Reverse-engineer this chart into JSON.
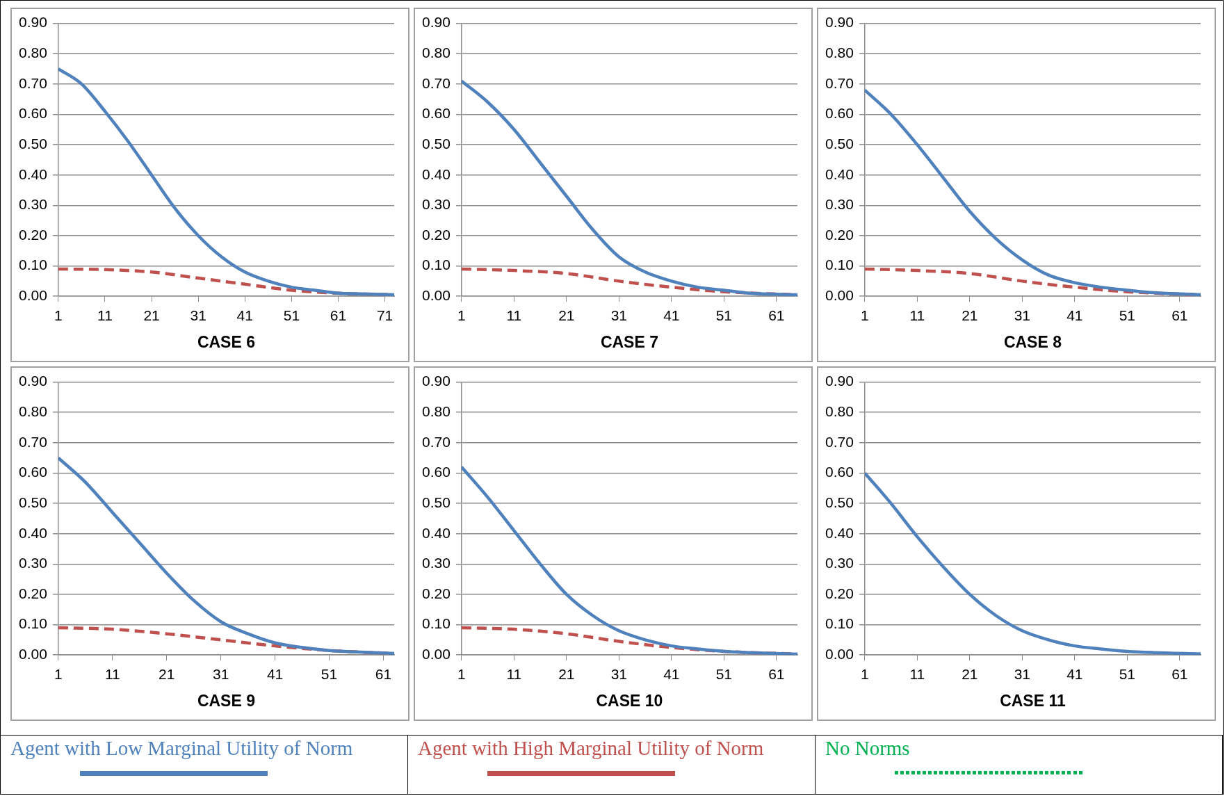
{
  "chart_data": [
    {
      "type": "line",
      "xlabel": "CASE 6",
      "xlim": [
        1,
        73
      ],
      "xticks": [
        1,
        11,
        21,
        31,
        41,
        51,
        61,
        71
      ],
      "ylim": [
        0,
        0.9
      ],
      "yticks": [
        {
          "value": 0,
          "label": "0.00"
        },
        {
          "value": 0.1,
          "label": "0.10"
        },
        {
          "value": 0.2,
          "label": "0.20"
        },
        {
          "value": 0.3,
          "label": "0.30"
        },
        {
          "value": 0.4,
          "label": "0.40"
        },
        {
          "value": 0.5,
          "label": "0.50"
        },
        {
          "value": 0.6,
          "label": "0.60"
        },
        {
          "value": 0.7,
          "label": "0.70"
        },
        {
          "value": 0.8,
          "label": "0.80"
        },
        {
          "value": 0.9,
          "label": "0.90"
        }
      ],
      "grid": "y",
      "legend": "bottom",
      "marker": "none",
      "series": [
        {
          "name": "Agent with Low Marginal Utility of Norm",
          "color": "#4f81bd",
          "line_style": "solid",
          "x": [
            1,
            6,
            11,
            16,
            21,
            26,
            31,
            36,
            41,
            46,
            51,
            56,
            61,
            66,
            73
          ],
          "values": [
            0.75,
            0.7,
            0.61,
            0.51,
            0.4,
            0.29,
            0.2,
            0.13,
            0.08,
            0.05,
            0.03,
            0.02,
            0.01,
            0.008,
            0.005
          ]
        },
        {
          "name": "Agent with High Marginal Utility of Norm",
          "color": "#c0504d",
          "line_style": "dashed",
          "x": [
            1,
            11,
            21,
            31,
            41,
            51,
            61,
            73
          ],
          "values": [
            0.09,
            0.088,
            0.08,
            0.06,
            0.04,
            0.02,
            0.01,
            0.005
          ]
        },
        {
          "name": "No Norms",
          "color": "#00b050",
          "line_style": "dotted"
        }
      ]
    },
    {
      "type": "line",
      "xlabel": "CASE 7",
      "xlim": [
        1,
        65
      ],
      "xticks": [
        1,
        11,
        21,
        31,
        41,
        51,
        61
      ],
      "ylim": [
        0,
        0.9
      ],
      "yticks": [
        {
          "value": 0,
          "label": "0.00"
        },
        {
          "value": 0.1,
          "label": "0.10"
        },
        {
          "value": 0.2,
          "label": "0.20"
        },
        {
          "value": 0.3,
          "label": "0.30"
        },
        {
          "value": 0.4,
          "label": "0.40"
        },
        {
          "value": 0.5,
          "label": "0.50"
        },
        {
          "value": 0.6,
          "label": "0.60"
        },
        {
          "value": 0.7,
          "label": "0.70"
        },
        {
          "value": 0.8,
          "label": "0.80"
        },
        {
          "value": 0.9,
          "label": "0.90"
        }
      ],
      "grid": "y",
      "marker": "none",
      "series": [
        {
          "color": "#4f81bd",
          "line_style": "solid",
          "x": [
            1,
            6,
            11,
            16,
            21,
            26,
            31,
            36,
            41,
            46,
            51,
            56,
            65
          ],
          "values": [
            0.71,
            0.64,
            0.55,
            0.44,
            0.33,
            0.22,
            0.13,
            0.08,
            0.05,
            0.03,
            0.02,
            0.01,
            0.005
          ]
        },
        {
          "color": "#c0504d",
          "line_style": "dashed",
          "x": [
            1,
            11,
            21,
            31,
            41,
            51,
            65
          ],
          "values": [
            0.09,
            0.085,
            0.075,
            0.05,
            0.03,
            0.015,
            0.005
          ]
        }
      ]
    },
    {
      "type": "line",
      "xlabel": "CASE 8",
      "xlim": [
        1,
        65
      ],
      "xticks": [
        1,
        11,
        21,
        31,
        41,
        51,
        61
      ],
      "ylim": [
        0,
        0.9
      ],
      "yticks": [
        {
          "value": 0,
          "label": "0.00"
        },
        {
          "value": 0.1,
          "label": "0.10"
        },
        {
          "value": 0.2,
          "label": "0.20"
        },
        {
          "value": 0.3,
          "label": "0.30"
        },
        {
          "value": 0.4,
          "label": "0.40"
        },
        {
          "value": 0.5,
          "label": "0.50"
        },
        {
          "value": 0.6,
          "label": "0.60"
        },
        {
          "value": 0.7,
          "label": "0.70"
        },
        {
          "value": 0.8,
          "label": "0.80"
        },
        {
          "value": 0.9,
          "label": "0.90"
        }
      ],
      "grid": "y",
      "marker": "none",
      "series": [
        {
          "color": "#4f81bd",
          "line_style": "solid",
          "x": [
            1,
            6,
            11,
            16,
            21,
            26,
            31,
            36,
            41,
            46,
            51,
            56,
            65
          ],
          "values": [
            0.68,
            0.6,
            0.5,
            0.39,
            0.28,
            0.19,
            0.12,
            0.07,
            0.045,
            0.03,
            0.02,
            0.012,
            0.005
          ]
        },
        {
          "color": "#c0504d",
          "line_style": "dashed",
          "x": [
            1,
            11,
            21,
            31,
            41,
            51,
            65
          ],
          "values": [
            0.09,
            0.085,
            0.075,
            0.05,
            0.03,
            0.015,
            0.005
          ]
        }
      ]
    },
    {
      "type": "line",
      "xlabel": "CASE 9",
      "xlim": [
        1,
        63
      ],
      "xticks": [
        1,
        11,
        21,
        31,
        41,
        51,
        61
      ],
      "ylim": [
        0,
        0.9
      ],
      "yticks": [
        {
          "value": 0,
          "label": "0.00"
        },
        {
          "value": 0.1,
          "label": "0.10"
        },
        {
          "value": 0.2,
          "label": "0.20"
        },
        {
          "value": 0.3,
          "label": "0.30"
        },
        {
          "value": 0.4,
          "label": "0.40"
        },
        {
          "value": 0.5,
          "label": "0.50"
        },
        {
          "value": 0.6,
          "label": "0.60"
        },
        {
          "value": 0.7,
          "label": "0.70"
        },
        {
          "value": 0.8,
          "label": "0.80"
        },
        {
          "value": 0.9,
          "label": "0.90"
        }
      ],
      "grid": "y",
      "marker": "none",
      "series": [
        {
          "color": "#4f81bd",
          "line_style": "solid",
          "x": [
            1,
            6,
            11,
            16,
            21,
            26,
            31,
            36,
            41,
            46,
            51,
            56,
            63
          ],
          "values": [
            0.65,
            0.57,
            0.47,
            0.37,
            0.27,
            0.18,
            0.11,
            0.07,
            0.04,
            0.025,
            0.015,
            0.01,
            0.005
          ]
        },
        {
          "color": "#c0504d",
          "line_style": "dashed",
          "x": [
            1,
            11,
            21,
            31,
            41,
            51,
            63
          ],
          "values": [
            0.09,
            0.085,
            0.07,
            0.05,
            0.03,
            0.015,
            0.005
          ]
        }
      ]
    },
    {
      "type": "line",
      "xlabel": "CASE 10",
      "xlim": [
        1,
        65
      ],
      "xticks": [
        1,
        11,
        21,
        31,
        41,
        51,
        61
      ],
      "ylim": [
        0,
        0.9
      ],
      "yticks": [
        {
          "value": 0,
          "label": "0.00"
        },
        {
          "value": 0.1,
          "label": "0.10"
        },
        {
          "value": 0.2,
          "label": "0.20"
        },
        {
          "value": 0.3,
          "label": "0.30"
        },
        {
          "value": 0.4,
          "label": "0.40"
        },
        {
          "value": 0.5,
          "label": "0.50"
        },
        {
          "value": 0.6,
          "label": "0.60"
        },
        {
          "value": 0.7,
          "label": "0.70"
        },
        {
          "value": 0.8,
          "label": "0.80"
        },
        {
          "value": 0.9,
          "label": "0.90"
        }
      ],
      "grid": "y",
      "marker": "none",
      "series": [
        {
          "color": "#4f81bd",
          "line_style": "solid",
          "x": [
            1,
            6,
            11,
            16,
            21,
            26,
            31,
            36,
            41,
            46,
            51,
            56,
            65
          ],
          "values": [
            0.62,
            0.52,
            0.41,
            0.3,
            0.2,
            0.13,
            0.08,
            0.05,
            0.03,
            0.02,
            0.012,
            0.008,
            0.003
          ]
        },
        {
          "color": "#c0504d",
          "line_style": "dashed",
          "x": [
            1,
            11,
            21,
            31,
            41,
            51,
            65
          ],
          "values": [
            0.09,
            0.085,
            0.07,
            0.045,
            0.025,
            0.012,
            0.003
          ]
        }
      ]
    },
    {
      "type": "line",
      "xlabel": "CASE 11",
      "xlim": [
        1,
        65
      ],
      "xticks": [
        1,
        11,
        21,
        31,
        41,
        51,
        61
      ],
      "ylim": [
        0,
        0.9
      ],
      "yticks": [
        {
          "value": 0,
          "label": "0.00"
        },
        {
          "value": 0.1,
          "label": "0.10"
        },
        {
          "value": 0.2,
          "label": "0.20"
        },
        {
          "value": 0.3,
          "label": "0.30"
        },
        {
          "value": 0.4,
          "label": "0.40"
        },
        {
          "value": 0.5,
          "label": "0.50"
        },
        {
          "value": 0.6,
          "label": "0.60"
        },
        {
          "value": 0.7,
          "label": "0.70"
        },
        {
          "value": 0.8,
          "label": "0.80"
        },
        {
          "value": 0.9,
          "label": "0.90"
        }
      ],
      "grid": "y",
      "marker": "none",
      "series": [
        {
          "color": "#4f81bd",
          "line_style": "solid",
          "x": [
            1,
            6,
            11,
            16,
            21,
            26,
            31,
            36,
            41,
            46,
            51,
            56,
            65
          ],
          "values": [
            0.6,
            0.5,
            0.39,
            0.29,
            0.2,
            0.13,
            0.08,
            0.05,
            0.03,
            0.02,
            0.012,
            0.008,
            0.004
          ]
        }
      ]
    }
  ]
}
